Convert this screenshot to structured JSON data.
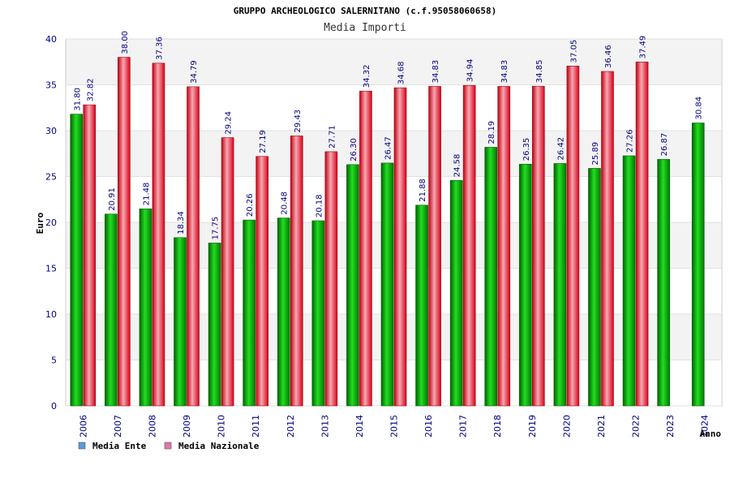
{
  "chart_data": {
    "type": "bar",
    "title": "GRUPPO ARCHEOLOGICO SALERNITANO (c.f.95058060658)",
    "subtitle": "Media Importi",
    "xlabel": "Anno",
    "ylabel": "Euro",
    "ylim": [
      0,
      40
    ],
    "yticks": [
      0,
      5,
      10,
      15,
      20,
      25,
      30,
      35,
      40
    ],
    "grid": true,
    "legend_position": "bottom-left",
    "categories": [
      "2006",
      "2007",
      "2008",
      "2009",
      "2010",
      "2011",
      "2012",
      "2013",
      "2014",
      "2015",
      "2016",
      "2017",
      "2018",
      "2019",
      "2020",
      "2021",
      "2022",
      "2023",
      "2024"
    ],
    "series": [
      {
        "name": "Media Ente",
        "color": "#00a000",
        "values": [
          31.8,
          20.91,
          21.48,
          18.34,
          17.75,
          20.26,
          20.48,
          20.18,
          26.3,
          26.47,
          21.88,
          24.58,
          28.19,
          26.35,
          26.42,
          25.89,
          27.26,
          26.87,
          30.84
        ],
        "labels": [
          "31.80",
          "20.91",
          "21.48",
          "18.34",
          "17.75",
          "20.26",
          "20.48",
          "20.18",
          "26.30",
          "26.47",
          "21.88",
          "24.58",
          "28.19",
          "26.35",
          "26.42",
          "25.89",
          "27.26",
          "26.87",
          "30.84"
        ]
      },
      {
        "name": "Media Nazionale",
        "color": "#e0101e",
        "values": [
          32.82,
          38.0,
          37.36,
          34.79,
          29.24,
          27.19,
          29.43,
          27.71,
          34.32,
          34.68,
          34.83,
          34.94,
          34.83,
          34.85,
          37.05,
          36.46,
          37.49,
          null,
          null
        ],
        "labels": [
          "32.82",
          "38.00",
          "37.36",
          "34.79",
          "29.24",
          "27.19",
          "29.43",
          "27.71",
          "34.32",
          "34.68",
          "34.83",
          "34.94",
          "34.83",
          "34.85",
          "37.05",
          "36.46",
          "37.49",
          "",
          ""
        ]
      }
    ],
    "legend": [
      {
        "label": "Media Ente",
        "color": "#5b9bd5"
      },
      {
        "label": "Media Nazionale",
        "color": "#e377a8"
      }
    ]
  }
}
